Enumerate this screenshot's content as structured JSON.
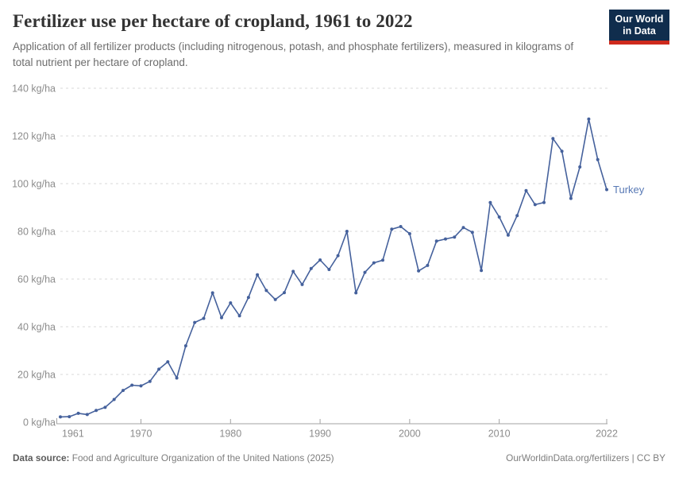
{
  "header": {
    "logo_line1": "Our World",
    "logo_line2": "in Data"
  },
  "theme": {
    "line_color": "#45619C",
    "entity_label_color": "#5879B5",
    "logo_bg": "#102D4D",
    "logo_accent": "#CE2A1D",
    "gridline_color": "#d9d9d9",
    "axis_color": "#a3a3a3",
    "tick_label_color": "#8c8c8c"
  },
  "chart_data": {
    "type": "line",
    "title": "Fertilizer use per hectare of cropland, 1961 to 2022",
    "subtitle": "Application of all fertilizer products (including nitrogenous, potash, and phosphate fertilizers), measured in kilograms of total nutrient per hectare of cropland.",
    "unit": "kg/ha",
    "ylim": [
      0,
      140
    ],
    "y_ticks": [
      0,
      20,
      40,
      60,
      80,
      100,
      120,
      140
    ],
    "y_tick_suffix": " kg/ha",
    "x_ticks": [
      1961,
      1970,
      1980,
      1990,
      2000,
      2010,
      2022
    ],
    "grid": "horizontal-dashed",
    "legend": "label-at-line-end",
    "series": [
      {
        "name": "Turkey",
        "x": [
          1961,
          1962,
          1963,
          1964,
          1965,
          1966,
          1967,
          1968,
          1969,
          1970,
          1971,
          1972,
          1973,
          1974,
          1975,
          1976,
          1977,
          1978,
          1979,
          1980,
          1981,
          1982,
          1983,
          1984,
          1985,
          1986,
          1987,
          1988,
          1989,
          1990,
          1991,
          1992,
          1993,
          1994,
          1995,
          1996,
          1997,
          1998,
          1999,
          2000,
          2001,
          2002,
          2003,
          2004,
          2005,
          2006,
          2007,
          2008,
          2009,
          2010,
          2011,
          2012,
          2013,
          2014,
          2015,
          2016,
          2017,
          2018,
          2019,
          2020,
          2021,
          2022
        ],
        "values": [
          2.2,
          2.3,
          3.7,
          3.2,
          4.9,
          6.2,
          9.5,
          13.3,
          15.5,
          15.2,
          17.1,
          22.2,
          25.3,
          18.5,
          32.0,
          41.8,
          43.5,
          54.2,
          43.8,
          50.0,
          44.6,
          52.3,
          61.8,
          55.2,
          51.4,
          54.3,
          63.2,
          57.7,
          64.4,
          68.0,
          64.0,
          69.8,
          80.0,
          54.2,
          62.8,
          66.8,
          67.9,
          80.9,
          82.0,
          79.0,
          63.4,
          65.7,
          75.9,
          76.8,
          77.6,
          81.6,
          79.6,
          63.6,
          92.1,
          86.0,
          78.4,
          86.6,
          97.1,
          91.2,
          92.1,
          118.9,
          113.6,
          93.8,
          107.0,
          127.1,
          110.1,
          97.5
        ]
      }
    ]
  },
  "footer": {
    "source_label": "Data source:",
    "source_text": "Food and Agriculture Organization of the United Nations (2025)",
    "credit": "OurWorldinData.org/fertilizers | CC BY"
  }
}
